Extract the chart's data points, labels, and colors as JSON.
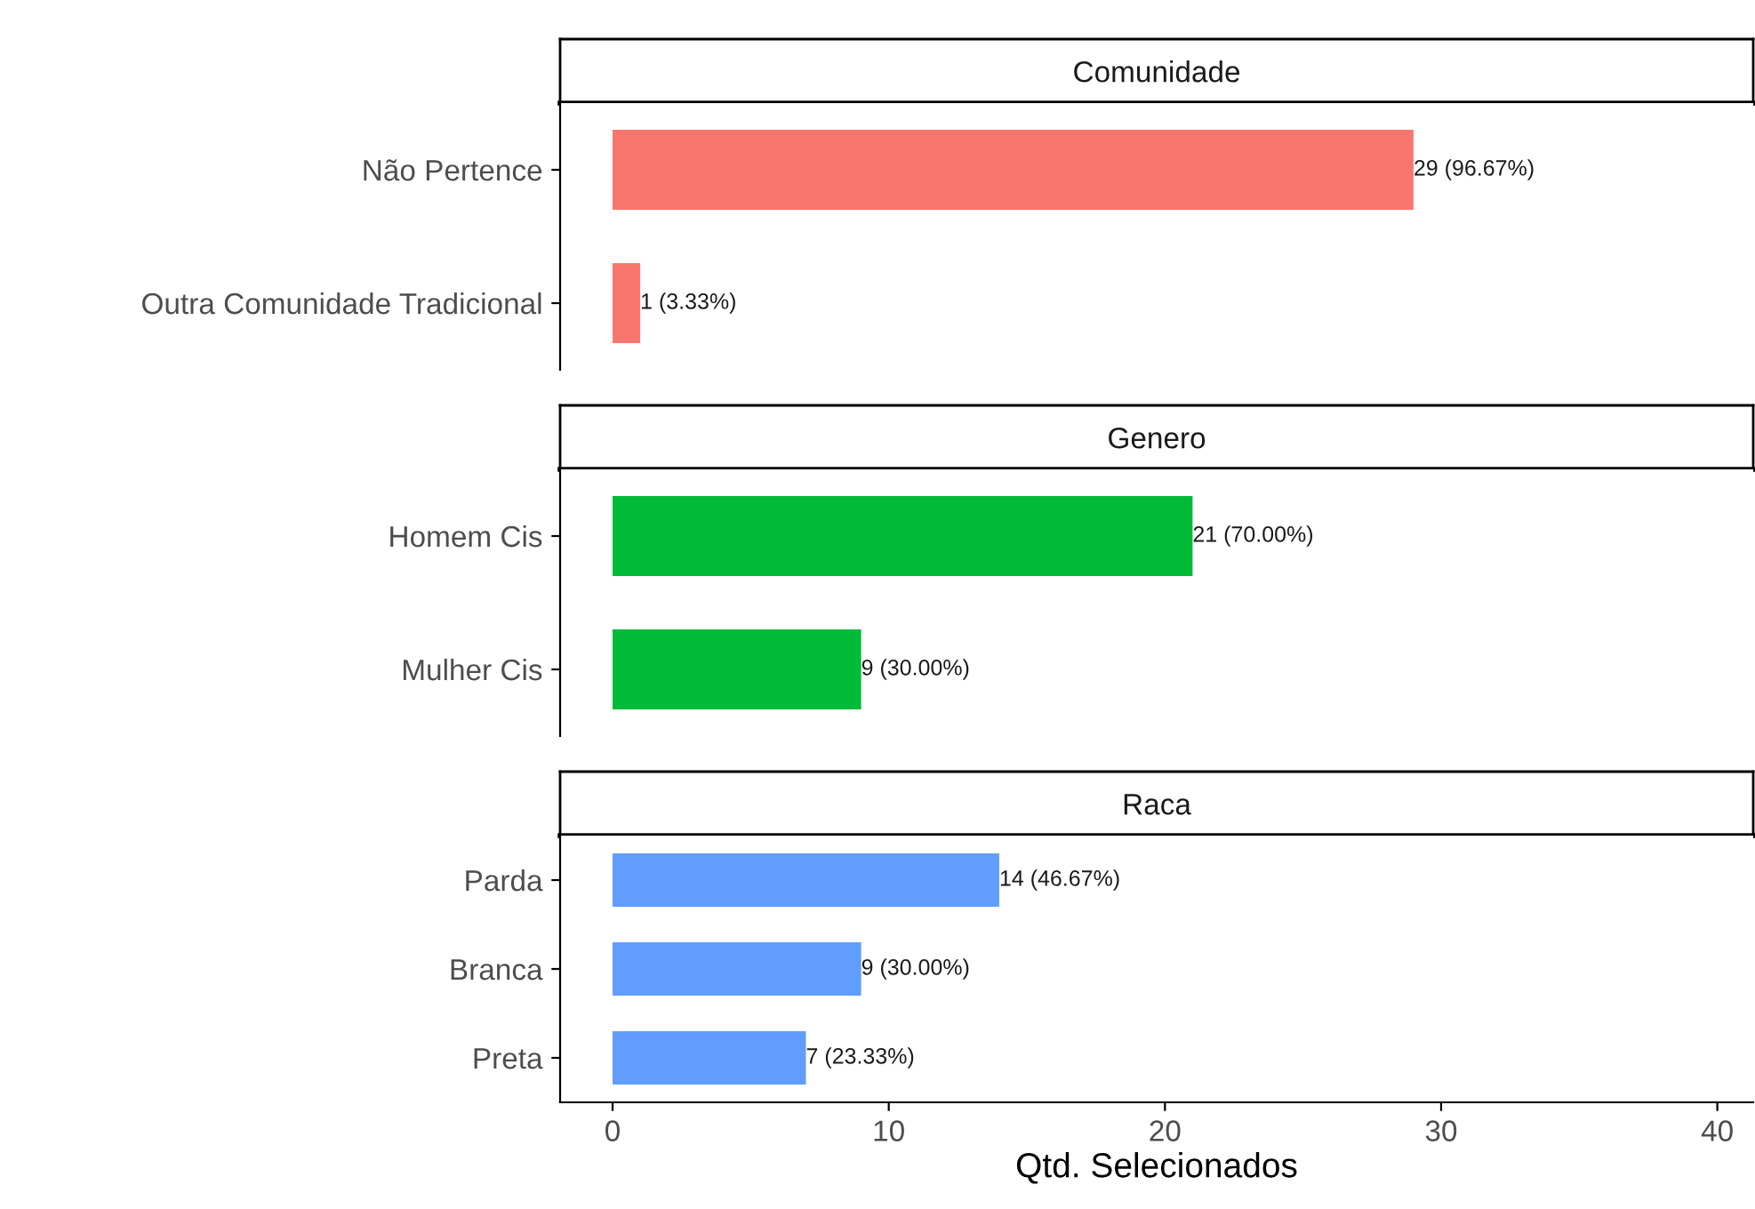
{
  "chart_data": [
    {
      "type": "bar",
      "orientation": "horizontal",
      "title": "Comunidade",
      "categories": [
        "Não Pertence",
        "Outra Comunidade Tradicional"
      ],
      "values": [
        29,
        1
      ],
      "color": "#f8766d",
      "value_labels": [
        "29 (96.67%)",
        "1 (3.33%)"
      ],
      "xlim": [
        -1.9,
        41.3
      ],
      "xticks": [
        0,
        10,
        20,
        30,
        40
      ],
      "tick_labels": "y",
      "grid": false,
      "legend": false
    },
    {
      "type": "bar",
      "orientation": "horizontal",
      "title": "Genero",
      "categories": [
        "Homem Cis",
        "Mulher Cis"
      ],
      "values": [
        21,
        9
      ],
      "color": "#00ba38",
      "value_labels": [
        "21 (70.00%)",
        "9 (30.00%)"
      ],
      "xlim": [
        -1.9,
        41.3
      ],
      "xticks": [
        0,
        10,
        20,
        30,
        40
      ],
      "tick_labels": "y",
      "grid": false,
      "legend": false
    },
    {
      "type": "bar",
      "orientation": "horizontal",
      "title": "Raca",
      "categories": [
        "Parda",
        "Branca",
        "Preta"
      ],
      "values": [
        14,
        9,
        7
      ],
      "color": "#619cff",
      "value_labels": [
        "14 (46.67%)",
        "9 (30.00%)",
        "7 (23.33%)"
      ],
      "xlim": [
        -1.9,
        41.3
      ],
      "xticks": [
        0,
        10,
        20,
        30,
        40
      ],
      "xlabel": "Qtd. Selecionados",
      "grid": false,
      "legend": false
    }
  ]
}
